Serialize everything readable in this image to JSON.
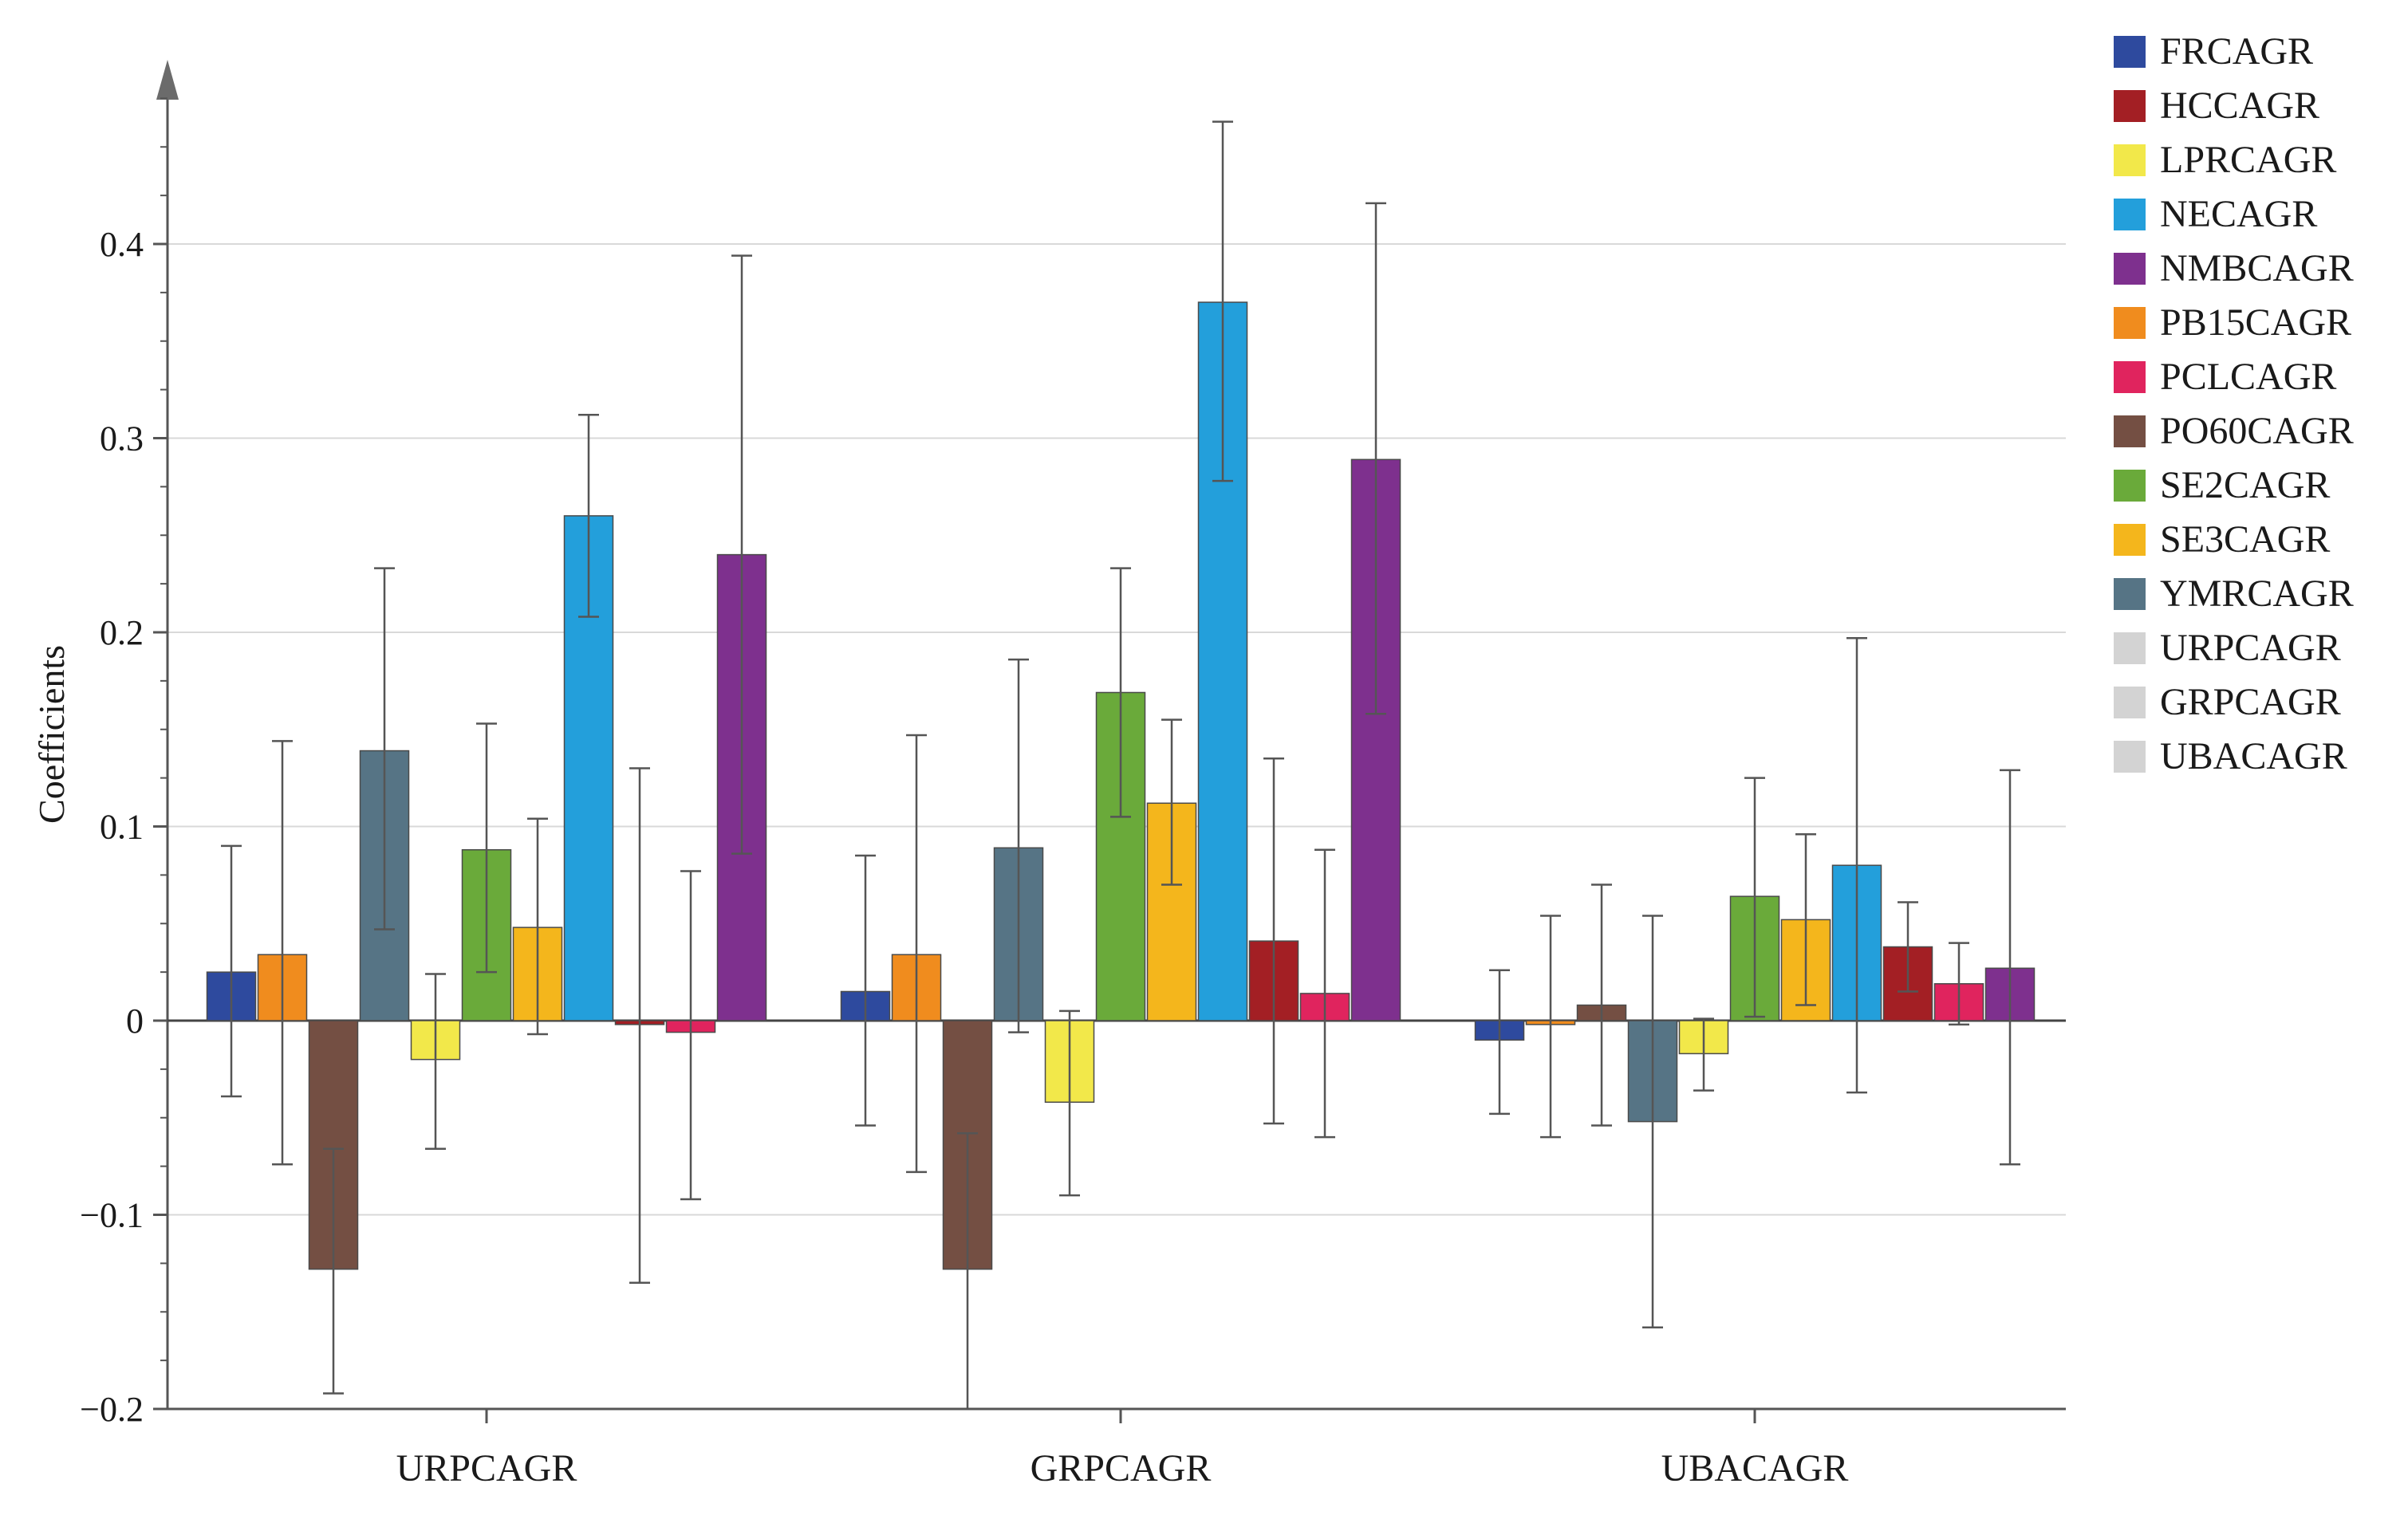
{
  "chart_data": {
    "type": "bar",
    "title": "",
    "xlabel": "",
    "ylabel": "Coefficients",
    "ylim": [
      -0.2,
      0.5
    ],
    "yticks": [
      -0.2,
      -0.1,
      0,
      0.1,
      0.2,
      0.3,
      0.4
    ],
    "ytick_labels": [
      "−0.2",
      "−0.1",
      "0",
      "0.1",
      "0.2",
      "0.3",
      "0.4"
    ],
    "grid": true,
    "legend_position": "right",
    "categories": [
      "URPCAGR",
      "GRPCAGR",
      "UBACAGR"
    ],
    "legend": [
      {
        "name": "FRCAGR",
        "color": "#2E4A9E"
      },
      {
        "name": "HCCAGR",
        "color": "#A31F24"
      },
      {
        "name": "LPRCAGR",
        "color": "#F2E84A"
      },
      {
        "name": "NECAGR",
        "color": "#239FDB"
      },
      {
        "name": "NMBCAGR",
        "color": "#7E308E"
      },
      {
        "name": "PB15CAGR",
        "color": "#F08C1E"
      },
      {
        "name": "PCLCAGR",
        "color": "#E0245E"
      },
      {
        "name": "PO60CAGR",
        "color": "#744F43"
      },
      {
        "name": "SE2CAGR",
        "color": "#6AAA3A"
      },
      {
        "name": "SE3CAGR",
        "color": "#F4B61C"
      },
      {
        "name": "YMRCAGR",
        "color": "#567485"
      },
      {
        "name": "URPCAGR",
        "color": "#D3D3D3"
      },
      {
        "name": "GRPCAGR",
        "color": "#D3D3D3"
      },
      {
        "name": "UBACAGR",
        "color": "#D3D3D3"
      }
    ],
    "groups": [
      {
        "category": "URPCAGR",
        "bars": [
          {
            "series": "FRCAGR",
            "value": 0.025,
            "err_low": -0.039,
            "err_high": 0.09
          },
          {
            "series": "PB15CAGR",
            "value": 0.034,
            "err_low": -0.074,
            "err_high": 0.144
          },
          {
            "series": "PO60CAGR",
            "value": -0.128,
            "err_low": -0.192,
            "err_high": -0.066
          },
          {
            "series": "YMRCAGR",
            "value": 0.139,
            "err_low": 0.047,
            "err_high": 0.233
          },
          {
            "series": "LPRCAGR",
            "value": -0.02,
            "err_low": -0.066,
            "err_high": 0.024
          },
          {
            "series": "SE2CAGR",
            "value": 0.088,
            "err_low": 0.025,
            "err_high": 0.153
          },
          {
            "series": "SE3CAGR",
            "value": 0.048,
            "err_low": -0.007,
            "err_high": 0.104
          },
          {
            "series": "NECAGR",
            "value": 0.26,
            "err_low": 0.208,
            "err_high": 0.312
          },
          {
            "series": "HCCAGR",
            "value": -0.002,
            "err_low": -0.135,
            "err_high": 0.13
          },
          {
            "series": "PCLCAGR",
            "value": -0.006,
            "err_low": -0.092,
            "err_high": 0.077
          },
          {
            "series": "NMBCAGR",
            "value": 0.24,
            "err_low": 0.086,
            "err_high": 0.394
          }
        ]
      },
      {
        "category": "GRPCAGR",
        "bars": [
          {
            "series": "FRCAGR",
            "value": 0.015,
            "err_low": -0.054,
            "err_high": 0.085
          },
          {
            "series": "PB15CAGR",
            "value": 0.034,
            "err_low": -0.078,
            "err_high": 0.147
          },
          {
            "series": "PO60CAGR",
            "value": -0.128,
            "err_low": -0.2,
            "err_high": -0.058
          },
          {
            "series": "YMRCAGR",
            "value": 0.089,
            "err_low": -0.006,
            "err_high": 0.186
          },
          {
            "series": "LPRCAGR",
            "value": -0.042,
            "err_low": -0.09,
            "err_high": 0.005
          },
          {
            "series": "SE2CAGR",
            "value": 0.169,
            "err_low": 0.105,
            "err_high": 0.233
          },
          {
            "series": "SE3CAGR",
            "value": 0.112,
            "err_low": 0.07,
            "err_high": 0.155
          },
          {
            "series": "NECAGR",
            "value": 0.37,
            "err_low": 0.278,
            "err_high": 0.463
          },
          {
            "series": "HCCAGR",
            "value": 0.041,
            "err_low": -0.053,
            "err_high": 0.135
          },
          {
            "series": "PCLCAGR",
            "value": 0.014,
            "err_low": -0.06,
            "err_high": 0.088
          },
          {
            "series": "NMBCAGR",
            "value": 0.289,
            "err_low": 0.158,
            "err_high": 0.421
          }
        ]
      },
      {
        "category": "UBACAGR",
        "bars": [
          {
            "series": "FRCAGR",
            "value": -0.01,
            "err_low": -0.048,
            "err_high": 0.026
          },
          {
            "series": "PB15CAGR",
            "value": -0.002,
            "err_low": -0.06,
            "err_high": 0.054
          },
          {
            "series": "PO60CAGR",
            "value": 0.008,
            "err_low": -0.054,
            "err_high": 0.07
          },
          {
            "series": "YMRCAGR",
            "value": -0.052,
            "err_low": -0.158,
            "err_high": 0.054
          },
          {
            "series": "LPRCAGR",
            "value": -0.017,
            "err_low": -0.036,
            "err_high": 0.001
          },
          {
            "series": "SE2CAGR",
            "value": 0.064,
            "err_low": 0.002,
            "err_high": 0.125
          },
          {
            "series": "SE3CAGR",
            "value": 0.052,
            "err_low": 0.008,
            "err_high": 0.096
          },
          {
            "series": "NECAGR",
            "value": 0.08,
            "err_low": -0.037,
            "err_high": 0.197
          },
          {
            "series": "HCCAGR",
            "value": 0.038,
            "err_low": 0.015,
            "err_high": 0.061
          },
          {
            "series": "PCLCAGR",
            "value": 0.019,
            "err_low": -0.002,
            "err_high": 0.04
          },
          {
            "series": "NMBCAGR",
            "value": 0.027,
            "err_low": -0.074,
            "err_high": 0.129
          }
        ]
      }
    ]
  }
}
